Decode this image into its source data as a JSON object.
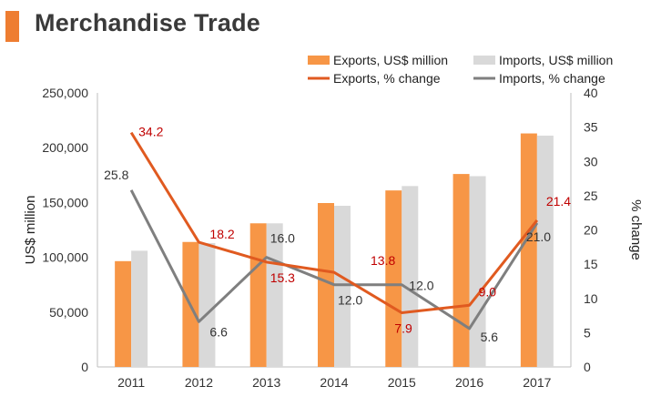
{
  "title": "Merchandise Trade",
  "colors": {
    "exports_bar": "#f79646",
    "imports_bar": "#d9d9d9",
    "exports_line": "#e05a20",
    "imports_line": "#7f7f7f",
    "exports_label": "#c00000",
    "imports_label": "#333333"
  },
  "chart_data": {
    "type": "bar",
    "categories": [
      "2011",
      "2012",
      "2013",
      "2014",
      "2015",
      "2016",
      "2017"
    ],
    "series": [
      {
        "name": "Exports, US$ million",
        "type": "bar",
        "axis": "left",
        "values": [
          96500,
          114000,
          131000,
          149500,
          161000,
          176000,
          213000
        ]
      },
      {
        "name": "Imports, US$ million",
        "type": "bar",
        "axis": "left",
        "values": [
          106000,
          113000,
          131000,
          147000,
          165000,
          174000,
          211000
        ]
      },
      {
        "name": "Exports, % change",
        "type": "line",
        "axis": "right",
        "values": [
          34.2,
          18.2,
          15.3,
          13.8,
          7.9,
          9.0,
          21.4
        ],
        "labels": [
          "34.2",
          "18.2",
          "15.3",
          "13.8",
          "7.9",
          "9.0",
          "21.4"
        ]
      },
      {
        "name": "Imports, % change",
        "type": "line",
        "axis": "right",
        "values": [
          25.8,
          6.6,
          16.0,
          12.0,
          12.0,
          5.6,
          21.0
        ],
        "labels": [
          "25.8",
          "6.6",
          "16.0",
          "12.0",
          "12.0",
          "5.6",
          "21.0"
        ]
      }
    ],
    "ylabel": "US$ million",
    "y2label": "% change",
    "ylim": [
      0,
      250000
    ],
    "y2lim": [
      0,
      40
    ],
    "yticks": [
      "0",
      "50,000",
      "100,000",
      "150,000",
      "200,000",
      "250,000"
    ],
    "y2ticks": [
      "0",
      "5",
      "10",
      "15",
      "20",
      "25",
      "30",
      "35",
      "40"
    ],
    "grid": false,
    "legend": "top-right"
  }
}
